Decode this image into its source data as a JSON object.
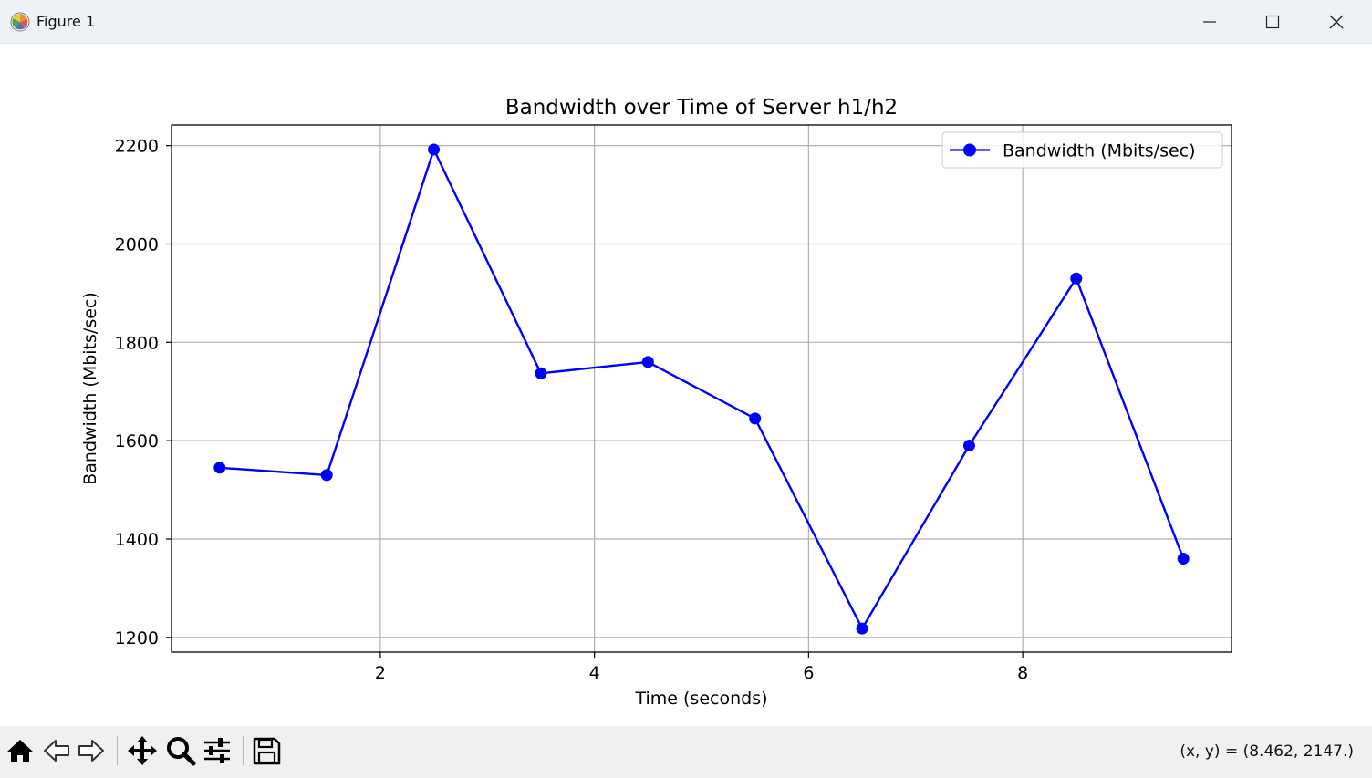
{
  "window": {
    "title": "Figure 1",
    "icons": {
      "app": "matplotlib-icon",
      "minimize": "minimize-icon",
      "maximize": "maximize-icon",
      "close": "close-icon"
    }
  },
  "toolbar": {
    "buttons": [
      {
        "name": "home-button",
        "icon": "home-icon"
      },
      {
        "name": "back-button",
        "icon": "back-arrow-icon"
      },
      {
        "name": "forward-button",
        "icon": "forward-arrow-icon"
      },
      {
        "name": "pan-button",
        "icon": "move-icon"
      },
      {
        "name": "zoom-button",
        "icon": "zoom-icon"
      },
      {
        "name": "configure-subplots-button",
        "icon": "sliders-icon"
      },
      {
        "name": "save-button",
        "icon": "save-icon"
      }
    ],
    "coords": "(x, y) = (8.462, 2147.)"
  },
  "colors": {
    "series": "#0000ff",
    "grid": "#b0b0b0",
    "titlebar": "#eef2f6",
    "toolbar": "#f0f0f0"
  },
  "chart_data": {
    "type": "line",
    "title": "Bandwidth over Time of Server h1/h2",
    "xlabel": "Time (seconds)",
    "ylabel": "Bandwidth (Mbits/sec)",
    "xlim": [
      0.05,
      9.95
    ],
    "ylim": [
      1170,
      2242
    ],
    "xticks": [
      2,
      4,
      6,
      8
    ],
    "xtick_labels": [
      "2",
      "4",
      "6",
      "8"
    ],
    "yticks": [
      1200,
      1400,
      1600,
      1800,
      2000,
      2200
    ],
    "ytick_labels": [
      "1200",
      "1400",
      "1600",
      "1800",
      "2000",
      "2200"
    ],
    "grid": true,
    "legend_position": "top-right",
    "marker": "circle",
    "series": [
      {
        "name": "Bandwidth (Mbits/sec)",
        "color": "#0000ff",
        "x": [
          0.5,
          1.5,
          2.5,
          3.5,
          4.5,
          5.5,
          6.5,
          7.5,
          8.5,
          9.5
        ],
        "y": [
          1545,
          1530,
          2192,
          1737,
          1760,
          1645,
          1218,
          1590,
          1930,
          1360
        ]
      }
    ]
  }
}
